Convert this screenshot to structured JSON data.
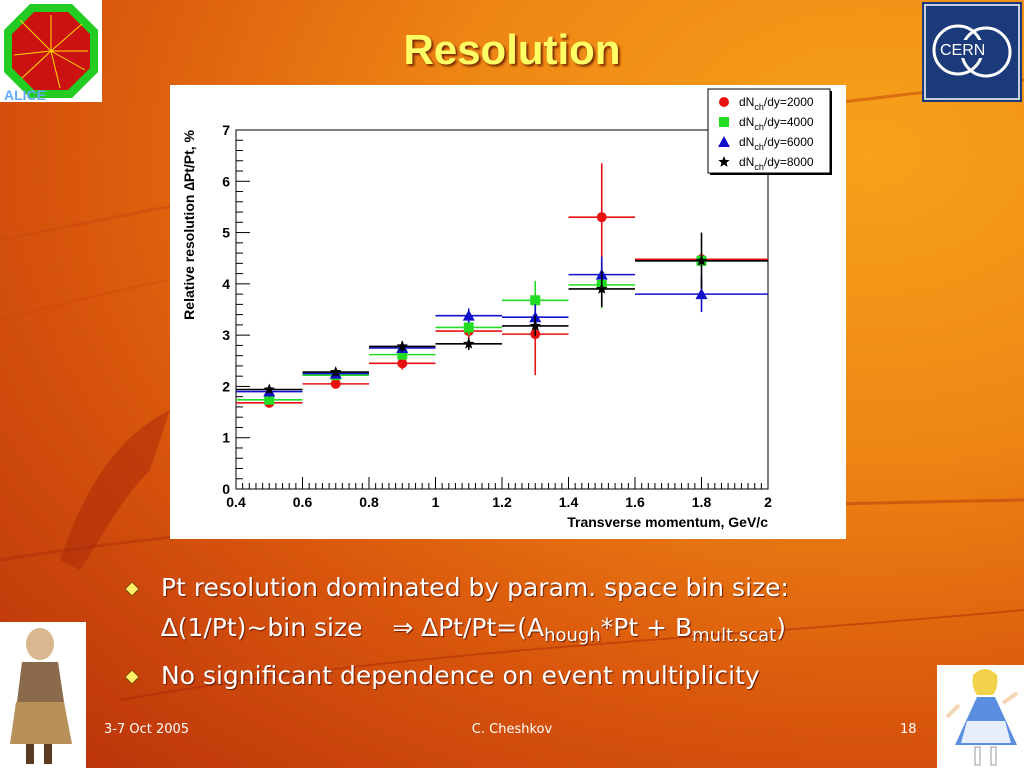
{
  "slide": {
    "title": "Resolution",
    "bullets": [
      {
        "text": "Pt resolution dominated by param. space bin size:"
      },
      {
        "parts": [
          "∆(1/Pt)~bin size",
          "⇒ ∆Pt/Pt=(A",
          "hough",
          "*Pt + B",
          "mult.scat",
          ")"
        ]
      },
      {
        "text": "No significant dependence on event multiplicity"
      }
    ],
    "footer": {
      "date": "3-7 Oct 2005",
      "author": "C. Cheshkov",
      "page": "18"
    },
    "logos": {
      "left": "alice-logo",
      "right": "cern-logo"
    },
    "colors": {
      "title": "#ffff66",
      "accent": "#ee8514"
    }
  },
  "chart_data": {
    "type": "scatter",
    "xlabel": "Transverse momentum, GeV/c",
    "ylabel": "Relative resolution ∆Pt/Pt, %",
    "xlim": [
      0.4,
      2
    ],
    "ylim": [
      0,
      7
    ],
    "xticks": [
      "0.4",
      "0.6",
      "0.8",
      "1",
      "1.2",
      "1.4",
      "1.6",
      "1.8",
      "2"
    ],
    "yticks": [
      "0",
      "1",
      "2",
      "3",
      "4",
      "5",
      "6",
      "7"
    ],
    "bins": [
      [
        0.4,
        0.6
      ],
      [
        0.6,
        0.8
      ],
      [
        0.8,
        1.0
      ],
      [
        1.0,
        1.2
      ],
      [
        1.2,
        1.4
      ],
      [
        1.4,
        1.6
      ],
      [
        1.6,
        2.0
      ]
    ],
    "legend_position": "top-right",
    "series": [
      {
        "name": "dNch/dy=2000",
        "label": {
          "main": "dN",
          "sub": "ch",
          "rest": "/dy=2000"
        },
        "marker": "circle",
        "color": "#e81010",
        "x": [
          0.5,
          0.7,
          0.9,
          1.1,
          1.3,
          1.5,
          1.8
        ],
        "y": [
          1.68,
          2.05,
          2.45,
          3.08,
          3.02,
          5.3,
          4.48
        ],
        "yerr": [
          0.05,
          0.08,
          0.12,
          0.15,
          0.8,
          1.05,
          0.12
        ]
      },
      {
        "name": "dNch/dy=4000",
        "label": {
          "main": "dN",
          "sub": "ch",
          "rest": "/dy=4000"
        },
        "marker": "square",
        "color": "#22dd22",
        "x": [
          0.5,
          0.7,
          0.9,
          1.1,
          1.3,
          1.5,
          1.8
        ],
        "y": [
          1.74,
          2.22,
          2.62,
          3.15,
          3.68,
          3.98,
          4.45
        ],
        "yerr": [
          0.06,
          0.08,
          0.1,
          0.15,
          0.38,
          0.45,
          0.12
        ]
      },
      {
        "name": "dNch/dy=6000",
        "label": {
          "main": "dN",
          "sub": "ch",
          "rest": "/dy=6000"
        },
        "marker": "triangle",
        "color": "#1111cc",
        "x": [
          0.5,
          0.7,
          0.9,
          1.1,
          1.3,
          1.5,
          1.8
        ],
        "y": [
          1.9,
          2.25,
          2.75,
          3.38,
          3.35,
          4.18,
          3.8
        ],
        "yerr": [
          0.06,
          0.07,
          0.09,
          0.14,
          0.25,
          0.35,
          0.35
        ]
      },
      {
        "name": "dNch/dy=8000",
        "label": {
          "main": "dN",
          "sub": "ch",
          "rest": "/dy=8000"
        },
        "marker": "star",
        "color": "#000000",
        "x": [
          0.5,
          0.7,
          0.9,
          1.1,
          1.3,
          1.5,
          1.8
        ],
        "y": [
          1.94,
          2.28,
          2.78,
          2.83,
          3.18,
          3.9,
          4.45
        ],
        "yerr": [
          0.06,
          0.07,
          0.1,
          0.12,
          0.2,
          0.35,
          0.55
        ]
      }
    ]
  }
}
